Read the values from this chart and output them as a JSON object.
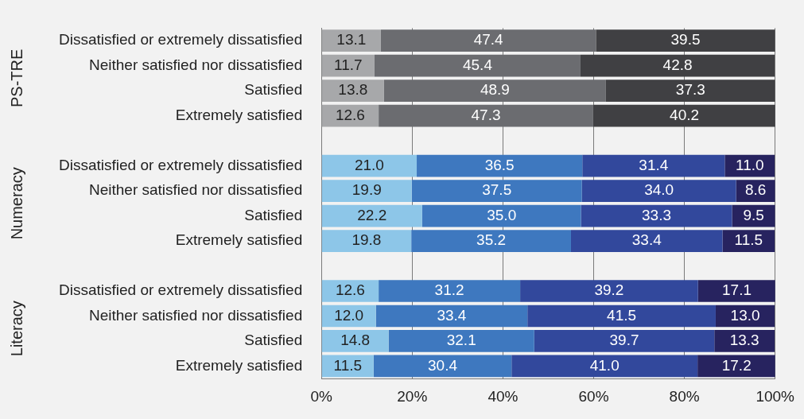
{
  "chart_data": {
    "type": "bar",
    "orientation": "horizontal",
    "stacked": true,
    "grid": "x",
    "legend": false,
    "categories": [
      "Dissatisfied or extremely dissatisfied",
      "Neither satisfied nor dissatisfied",
      "Satisfied",
      "Extremely satisfied",
      null,
      "Dissatisfied or extremely dissatisfied",
      "Neither satisfied nor dissatisfied",
      "Satisfied",
      "Extremely satisfied",
      null,
      "Dissatisfied or extremely dissatisfied",
      "Neither satisfied nor dissatisfied",
      "Satisfied",
      "Extremely satisfied"
    ],
    "annotations": [
      "PS-TRE",
      "Numeracy",
      "Literacy"
    ],
    "xlim": [
      0,
      100
    ],
    "xticks": [
      {
        "value": 0,
        "label": "0%"
      },
      {
        "value": 20,
        "label": "20%"
      },
      {
        "value": 40,
        "label": "40%"
      },
      {
        "value": 60,
        "label": "60%"
      },
      {
        "value": 80,
        "label": "80%"
      },
      {
        "value": 100,
        "label": "100%"
      }
    ],
    "series": [
      {
        "color": "#a7a8aa",
        "values": [
          13.1,
          11.7,
          13.8,
          12.6,
          null,
          null,
          null,
          null,
          null,
          null,
          null,
          null,
          null,
          null
        ],
        "value_labels": [
          "13.1",
          "11.7",
          "13.8",
          "12.6",
          null,
          null,
          null,
          null,
          null,
          null,
          null,
          null,
          null,
          null
        ]
      },
      {
        "color": "#6b6c70",
        "values": [
          47.4,
          45.4,
          48.9,
          47.3,
          null,
          null,
          null,
          null,
          null,
          null,
          null,
          null,
          null,
          null
        ],
        "value_labels": [
          "47.4",
          "45.4",
          "48.9",
          "47.3",
          null,
          null,
          null,
          null,
          null,
          null,
          null,
          null,
          null,
          null
        ]
      },
      {
        "color": "#404043",
        "values": [
          39.5,
          42.8,
          37.3,
          40.2,
          null,
          null,
          null,
          null,
          null,
          null,
          null,
          null,
          null,
          null
        ],
        "value_labels": [
          "39.5",
          "42.8",
          "37.3",
          "40.2",
          null,
          null,
          null,
          null,
          null,
          null,
          null,
          null,
          null,
          null
        ]
      },
      {
        "color": "#8dc6e8",
        "values": [
          null,
          null,
          null,
          null,
          null,
          21.0,
          19.9,
          22.2,
          19.8,
          null,
          12.6,
          12.0,
          14.8,
          11.5
        ],
        "value_labels": [
          null,
          null,
          null,
          null,
          null,
          "21.0",
          "19.9",
          "22.2",
          "19.8",
          null,
          "12.6",
          "12.0",
          "14.8",
          "11.5"
        ]
      },
      {
        "color": "#3e78bf",
        "values": [
          null,
          null,
          null,
          null,
          null,
          36.5,
          37.5,
          35.0,
          35.2,
          null,
          31.2,
          33.4,
          32.1,
          30.4
        ],
        "value_labels": [
          null,
          null,
          null,
          null,
          null,
          "36.5",
          "37.5",
          "35.0",
          "35.2",
          null,
          "31.2",
          "33.4",
          "32.1",
          "30.4"
        ]
      },
      {
        "color": "#32489c",
        "values": [
          null,
          null,
          null,
          null,
          null,
          31.4,
          34.0,
          33.3,
          33.4,
          null,
          39.2,
          41.5,
          39.7,
          41.0
        ],
        "value_labels": [
          null,
          null,
          null,
          null,
          null,
          "31.4",
          "34.0",
          "33.3",
          "33.4",
          null,
          "39.2",
          "41.5",
          "39.7",
          "41.0"
        ]
      },
      {
        "color": "#27235f",
        "values": [
          null,
          null,
          null,
          null,
          null,
          11.0,
          8.6,
          9.5,
          11.5,
          null,
          17.1,
          13.0,
          13.3,
          17.2
        ],
        "value_labels": [
          null,
          null,
          null,
          null,
          null,
          "11.0",
          "8.6",
          "9.5",
          "11.5",
          null,
          "17.1",
          "13.0",
          "13.3",
          "17.2"
        ]
      }
    ]
  }
}
